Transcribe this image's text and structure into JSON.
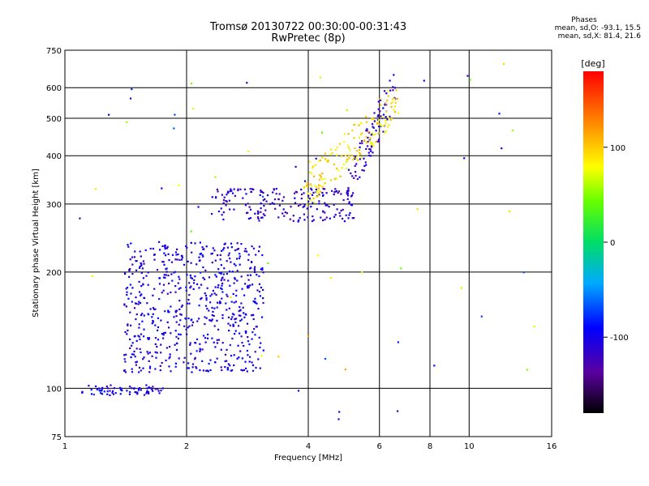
{
  "chart_data": {
    "type": "scatter",
    "title": "Tromsø 20130722 00:30:00-00:31:43",
    "subtitle": "RwPretec (8p)",
    "xlabel": "Frequency [MHz]",
    "ylabel": "Stationary phase Virtual Height [km]",
    "xscale": "log",
    "yscale": "log",
    "xlim": [
      1,
      16
    ],
    "ylim": [
      75,
      750
    ],
    "x_ticks": [
      "1",
      "2",
      "4",
      "6",
      "8",
      "10",
      "16"
    ],
    "y_ticks": [
      "75",
      "100",
      "200",
      "300",
      "400",
      "500",
      "600",
      "750"
    ],
    "grid": true,
    "colorbar": {
      "label": "[deg]",
      "range": [
        -180,
        180
      ],
      "ticks": [
        "100",
        "0",
        "-100"
      ],
      "colormap": "rainbow"
    },
    "stats": {
      "heading": "Phases",
      "line_o": "mean, sd,O: -93.1, 15.5",
      "line_x": "mean, sd,X: 81.4, 21.6"
    },
    "clusters": [
      {
        "region": "low-frequency trace",
        "freq_range_mhz": [
          1.1,
          1.75
        ],
        "height_range_km": [
          96,
          102
        ],
        "phase_deg": -110
      },
      {
        "region": "E/F1 cloud",
        "freq_range_mhz": [
          1.4,
          3.1
        ],
        "height_range_km": [
          110,
          240
        ],
        "phase_deg": -110
      },
      {
        "region": "F layer trace",
        "freq_range_mhz": [
          2.3,
          5.2
        ],
        "height_range_km": [
          270,
          330
        ],
        "phase_deg": -120
      },
      {
        "region": "F layer upper trace",
        "freq_range_mhz": [
          5.0,
          6.6
        ],
        "height_range_km": [
          330,
          620
        ],
        "phase_deg": -120
      },
      {
        "region": "extraordinary trace",
        "freq_range_mhz": [
          3.9,
          6.7
        ],
        "height_range_km": [
          320,
          560
        ],
        "phase_deg": 90
      }
    ]
  }
}
